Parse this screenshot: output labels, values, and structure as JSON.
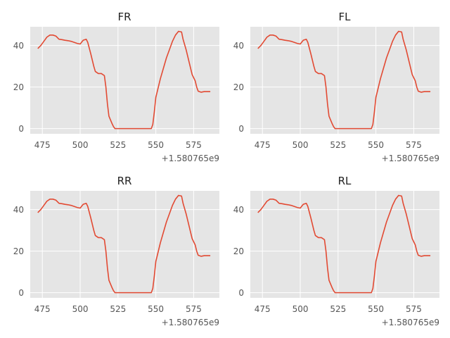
{
  "chart_data": [
    {
      "type": "line",
      "title": "FR",
      "xlabel": "",
      "ylabel": "",
      "x_offset_label": "+1.580765e9",
      "x_ticks": [
        475,
        500,
        525,
        550,
        575
      ],
      "y_ticks": [
        0,
        20,
        40
      ],
      "xlim": [
        467,
        592
      ],
      "ylim": [
        -2.5,
        49
      ],
      "grid": true,
      "series": [
        {
          "color": "#e24a33",
          "points": [
            [
              472,
              38.5
            ],
            [
              474,
              40
            ],
            [
              476,
              42
            ],
            [
              478,
              44
            ],
            [
              480,
              45
            ],
            [
              482,
              45
            ],
            [
              484,
              44.5
            ],
            [
              486,
              43
            ],
            [
              488,
              42.8
            ],
            [
              490,
              42.5
            ],
            [
              492,
              42.3
            ],
            [
              494,
              42
            ],
            [
              496,
              41.5
            ],
            [
              498,
              41
            ],
            [
              500,
              40.7
            ],
            [
              502,
              42.5
            ],
            [
              504,
              43
            ],
            [
              505,
              41.5
            ],
            [
              507,
              36
            ],
            [
              509,
              30
            ],
            [
              510,
              27.5
            ],
            [
              512,
              26.5
            ],
            [
              514,
              26.5
            ],
            [
              516,
              25.5
            ],
            [
              517,
              20
            ],
            [
              518,
              12
            ],
            [
              519,
              6
            ],
            [
              521,
              2.5
            ],
            [
              522,
              1
            ],
            [
              523,
              0
            ],
            [
              525,
              0
            ],
            [
              530,
              0
            ],
            [
              535,
              0
            ],
            [
              540,
              0
            ],
            [
              545,
              0
            ],
            [
              547,
              0
            ],
            [
              548,
              2
            ],
            [
              549,
              8
            ],
            [
              550,
              15
            ],
            [
              551,
              18
            ],
            [
              553,
              24
            ],
            [
              555,
              29
            ],
            [
              557,
              34
            ],
            [
              559,
              38
            ],
            [
              561,
              42
            ],
            [
              563,
              45
            ],
            [
              565,
              46.8
            ],
            [
              567,
              46.5
            ],
            [
              568,
              43
            ],
            [
              570,
              38
            ],
            [
              572,
              32
            ],
            [
              574,
              26
            ],
            [
              576,
              23
            ],
            [
              577,
              20
            ],
            [
              578,
              18
            ],
            [
              580,
              17.5
            ],
            [
              582,
              17.8
            ],
            [
              584,
              17.8
            ],
            [
              586,
              17.8
            ]
          ]
        }
      ]
    },
    {
      "type": "line",
      "title": "FL",
      "xlabel": "",
      "ylabel": "",
      "x_offset_label": "+1.580765e9",
      "x_ticks": [
        475,
        500,
        525,
        550,
        575
      ],
      "y_ticks": [
        0,
        20,
        40
      ],
      "xlim": [
        467,
        592
      ],
      "ylim": [
        -2.5,
        49
      ],
      "grid": true,
      "series": [
        {
          "color": "#e24a33",
          "points": [
            [
              472,
              38.5
            ],
            [
              474,
              40
            ],
            [
              476,
              42
            ],
            [
              478,
              44
            ],
            [
              480,
              45
            ],
            [
              482,
              45
            ],
            [
              484,
              44.5
            ],
            [
              486,
              43
            ],
            [
              488,
              42.8
            ],
            [
              490,
              42.5
            ],
            [
              492,
              42.3
            ],
            [
              494,
              42
            ],
            [
              496,
              41.5
            ],
            [
              498,
              41
            ],
            [
              500,
              40.7
            ],
            [
              502,
              42.5
            ],
            [
              504,
              43
            ],
            [
              505,
              41.5
            ],
            [
              507,
              36
            ],
            [
              509,
              30
            ],
            [
              510,
              27.5
            ],
            [
              512,
              26.5
            ],
            [
              514,
              26.5
            ],
            [
              516,
              25.5
            ],
            [
              517,
              20
            ],
            [
              518,
              12
            ],
            [
              519,
              6
            ],
            [
              521,
              2.5
            ],
            [
              522,
              1
            ],
            [
              523,
              0
            ],
            [
              525,
              0
            ],
            [
              530,
              0
            ],
            [
              535,
              0
            ],
            [
              540,
              0
            ],
            [
              545,
              0
            ],
            [
              547,
              0
            ],
            [
              548,
              2
            ],
            [
              549,
              8
            ],
            [
              550,
              15
            ],
            [
              551,
              18
            ],
            [
              553,
              24
            ],
            [
              555,
              29
            ],
            [
              557,
              34
            ],
            [
              559,
              38
            ],
            [
              561,
              42
            ],
            [
              563,
              45
            ],
            [
              565,
              46.8
            ],
            [
              567,
              46.5
            ],
            [
              568,
              43
            ],
            [
              570,
              38
            ],
            [
              572,
              32
            ],
            [
              574,
              26
            ],
            [
              576,
              23
            ],
            [
              577,
              20
            ],
            [
              578,
              18
            ],
            [
              580,
              17.5
            ],
            [
              582,
              17.8
            ],
            [
              584,
              17.8
            ],
            [
              586,
              17.8
            ]
          ]
        }
      ]
    },
    {
      "type": "line",
      "title": "RR",
      "xlabel": "",
      "ylabel": "",
      "x_offset_label": "+1.580765e9",
      "x_ticks": [
        475,
        500,
        525,
        550,
        575
      ],
      "y_ticks": [
        0,
        20,
        40
      ],
      "xlim": [
        467,
        592
      ],
      "ylim": [
        -2.5,
        49
      ],
      "grid": true,
      "series": [
        {
          "color": "#e24a33",
          "points": [
            [
              472,
              38.5
            ],
            [
              474,
              40
            ],
            [
              476,
              42
            ],
            [
              478,
              44
            ],
            [
              480,
              45
            ],
            [
              482,
              45
            ],
            [
              484,
              44.5
            ],
            [
              486,
              43
            ],
            [
              488,
              42.8
            ],
            [
              490,
              42.5
            ],
            [
              492,
              42.3
            ],
            [
              494,
              42
            ],
            [
              496,
              41.5
            ],
            [
              498,
              41
            ],
            [
              500,
              40.7
            ],
            [
              502,
              42.5
            ],
            [
              504,
              43
            ],
            [
              505,
              41.5
            ],
            [
              507,
              36
            ],
            [
              509,
              30
            ],
            [
              510,
              27.5
            ],
            [
              512,
              26.5
            ],
            [
              514,
              26.5
            ],
            [
              516,
              25.5
            ],
            [
              517,
              20
            ],
            [
              518,
              12
            ],
            [
              519,
              6
            ],
            [
              521,
              2.5
            ],
            [
              522,
              1
            ],
            [
              523,
              0
            ],
            [
              525,
              0
            ],
            [
              530,
              0
            ],
            [
              535,
              0
            ],
            [
              540,
              0
            ],
            [
              545,
              0
            ],
            [
              547,
              0
            ],
            [
              548,
              2
            ],
            [
              549,
              8
            ],
            [
              550,
              15
            ],
            [
              551,
              18
            ],
            [
              553,
              24
            ],
            [
              555,
              29
            ],
            [
              557,
              34
            ],
            [
              559,
              38
            ],
            [
              561,
              42
            ],
            [
              563,
              45
            ],
            [
              565,
              46.8
            ],
            [
              567,
              46.5
            ],
            [
              568,
              43
            ],
            [
              570,
              38
            ],
            [
              572,
              32
            ],
            [
              574,
              26
            ],
            [
              576,
              23
            ],
            [
              577,
              20
            ],
            [
              578,
              18
            ],
            [
              580,
              17.5
            ],
            [
              582,
              17.8
            ],
            [
              584,
              17.8
            ],
            [
              586,
              17.8
            ]
          ]
        }
      ]
    },
    {
      "type": "line",
      "title": "RL",
      "xlabel": "",
      "ylabel": "",
      "x_offset_label": "+1.580765e9",
      "x_ticks": [
        475,
        500,
        525,
        550,
        575
      ],
      "y_ticks": [
        0,
        20,
        40
      ],
      "xlim": [
        467,
        592
      ],
      "ylim": [
        -2.5,
        49
      ],
      "grid": true,
      "series": [
        {
          "color": "#e24a33",
          "points": [
            [
              472,
              38.5
            ],
            [
              474,
              40
            ],
            [
              476,
              42
            ],
            [
              478,
              44
            ],
            [
              480,
              45
            ],
            [
              482,
              45
            ],
            [
              484,
              44.5
            ],
            [
              486,
              43
            ],
            [
              488,
              42.8
            ],
            [
              490,
              42.5
            ],
            [
              492,
              42.3
            ],
            [
              494,
              42
            ],
            [
              496,
              41.5
            ],
            [
              498,
              41
            ],
            [
              500,
              40.7
            ],
            [
              502,
              42.5
            ],
            [
              504,
              43
            ],
            [
              505,
              41.5
            ],
            [
              507,
              36
            ],
            [
              509,
              30
            ],
            [
              510,
              27.5
            ],
            [
              512,
              26.5
            ],
            [
              514,
              26.5
            ],
            [
              516,
              25.5
            ],
            [
              517,
              20
            ],
            [
              518,
              12
            ],
            [
              519,
              6
            ],
            [
              521,
              2.5
            ],
            [
              522,
              1
            ],
            [
              523,
              0
            ],
            [
              525,
              0
            ],
            [
              530,
              0
            ],
            [
              535,
              0
            ],
            [
              540,
              0
            ],
            [
              545,
              0
            ],
            [
              547,
              0
            ],
            [
              548,
              2
            ],
            [
              549,
              8
            ],
            [
              550,
              15
            ],
            [
              551,
              18
            ],
            [
              553,
              24
            ],
            [
              555,
              29
            ],
            [
              557,
              34
            ],
            [
              559,
              38
            ],
            [
              561,
              42
            ],
            [
              563,
              45
            ],
            [
              565,
              46.8
            ],
            [
              567,
              46.5
            ],
            [
              568,
              43
            ],
            [
              570,
              38
            ],
            [
              572,
              32
            ],
            [
              574,
              26
            ],
            [
              576,
              23
            ],
            [
              577,
              20
            ],
            [
              578,
              18
            ],
            [
              580,
              17.5
            ],
            [
              582,
              17.8
            ],
            [
              584,
              17.8
            ],
            [
              586,
              17.8
            ]
          ]
        }
      ]
    }
  ]
}
